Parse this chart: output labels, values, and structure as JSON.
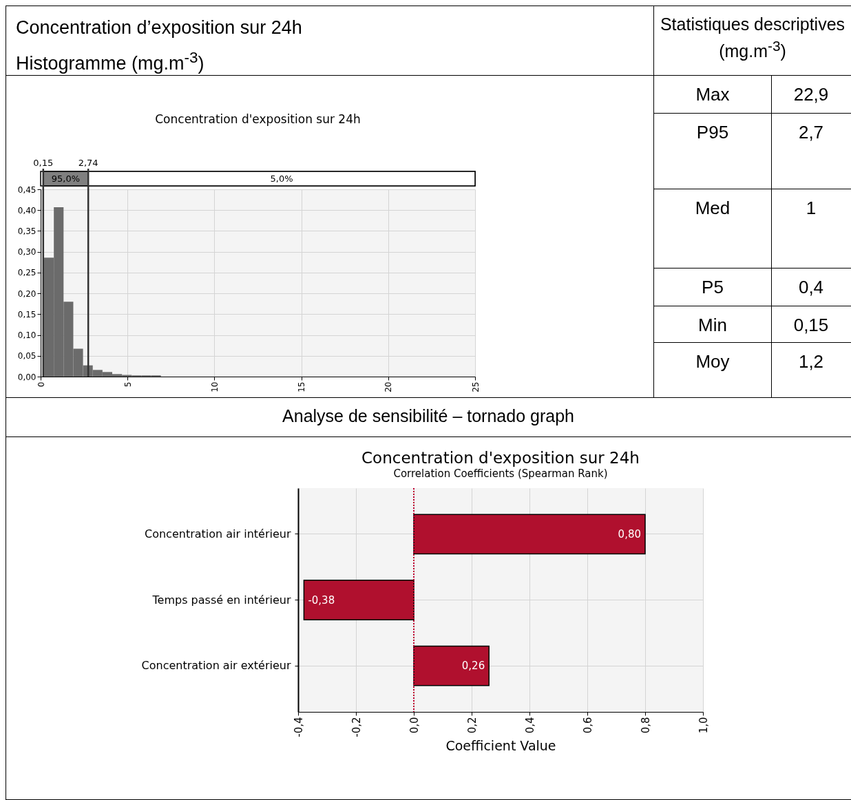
{
  "chart_data": [
    {
      "type": "histogram",
      "title": "Concentration d’exposition sur 24h",
      "subtitle": "Histogramme (mg.m$^{-3}$)",
      "annotations": [
        "Concentration d'exposition sur 24h",
        "95,0%",
        "5,0%"
      ],
      "bins": [
        0.2,
        0.76,
        1.32,
        1.88,
        2.44,
        3.0,
        3.56,
        4.12,
        4.68,
        5.24,
        5.8,
        6.36,
        6.92
      ],
      "values": [
        0.286,
        0.407,
        0.18,
        0.067,
        0.027,
        0.016,
        0.011,
        0.006,
        0.004,
        0.003,
        0.003,
        0.003
      ],
      "color": "#6b6b6b",
      "xlim": [
        0,
        25
      ],
      "xticks": [
        0,
        5,
        10,
        15,
        20,
        25
      ],
      "ylim": [
        0,
        0.45
      ],
      "yticks": [
        {
          "value": 0,
          "label": "0,00"
        },
        {
          "value": 0.05,
          "label": "0,05"
        },
        {
          "value": 0.1,
          "label": "0,10"
        },
        {
          "value": 0.15,
          "label": "0,15"
        },
        {
          "value": 0.2,
          "label": "0,20"
        },
        {
          "value": 0.25,
          "label": "0,25"
        },
        {
          "value": 0.3,
          "label": "0,30"
        },
        {
          "value": 0.35,
          "label": "0,35"
        },
        {
          "value": 0.4,
          "label": "0,40"
        },
        {
          "value": 0.45,
          "label": "0,45"
        }
      ],
      "ref_lines": [
        {
          "axis": "x",
          "value": 0.15,
          "label": "0,15"
        },
        {
          "axis": "x",
          "value": 2.74,
          "label": "2,74"
        }
      ],
      "grid": true
    },
    {
      "type": "other",
      "title": "Statistiques descriptives (mg.m$^{-3}$)",
      "annotations": [
        "Max",
        "22,9",
        "P95",
        "2,7",
        "Med",
        "1",
        "P5",
        "0,4",
        "Min",
        "0,15",
        "Moy",
        "1,2"
      ]
    },
    {
      "type": "bar",
      "orientation": "horizontal",
      "title": "Concentration d'exposition sur 24h",
      "subtitle": "Correlation Coefficients (Spearman Rank)",
      "annotations": [
        "Analyse de sensibilité – tornado graph"
      ],
      "xlabel": "Coefficient Value",
      "categories": [
        "Concentration air intérieur",
        "Temps passé en intérieur",
        "Concentration air extérieur"
      ],
      "values": [
        0.8,
        -0.38,
        0.26
      ],
      "value_labels": [
        "0,80",
        "-0,38",
        "0,26"
      ],
      "color": "#b0102e",
      "xlim": [
        -0.4,
        1.0
      ],
      "xticks": [
        {
          "value": -0.4,
          "label": "-0,4"
        },
        {
          "value": -0.2,
          "label": "-0,2"
        },
        {
          "value": 0,
          "label": "0,0"
        },
        {
          "value": 0.2,
          "label": "0,2"
        },
        {
          "value": 0.4,
          "label": "0,4"
        },
        {
          "value": 0.6,
          "label": "0,6"
        },
        {
          "value": 0.8,
          "label": "0,8"
        },
        {
          "value": 1.0,
          "label": "1,0"
        }
      ],
      "ref_lines": [
        {
          "axis": "x",
          "value": 0,
          "color": "#c00030",
          "line_style": "dotted"
        }
      ],
      "grid": true
    }
  ]
}
